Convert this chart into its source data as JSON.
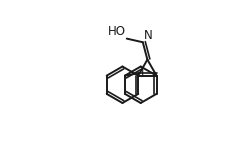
{
  "background": "#ffffff",
  "line_color": "#1a1a1a",
  "line_width": 1.4,
  "label_HO": "HO",
  "label_N": "N",
  "label_I": "I",
  "font_size": 8.5,
  "xlim": [
    -0.05,
    1.1
  ],
  "ylim": [
    0.05,
    1.05
  ]
}
